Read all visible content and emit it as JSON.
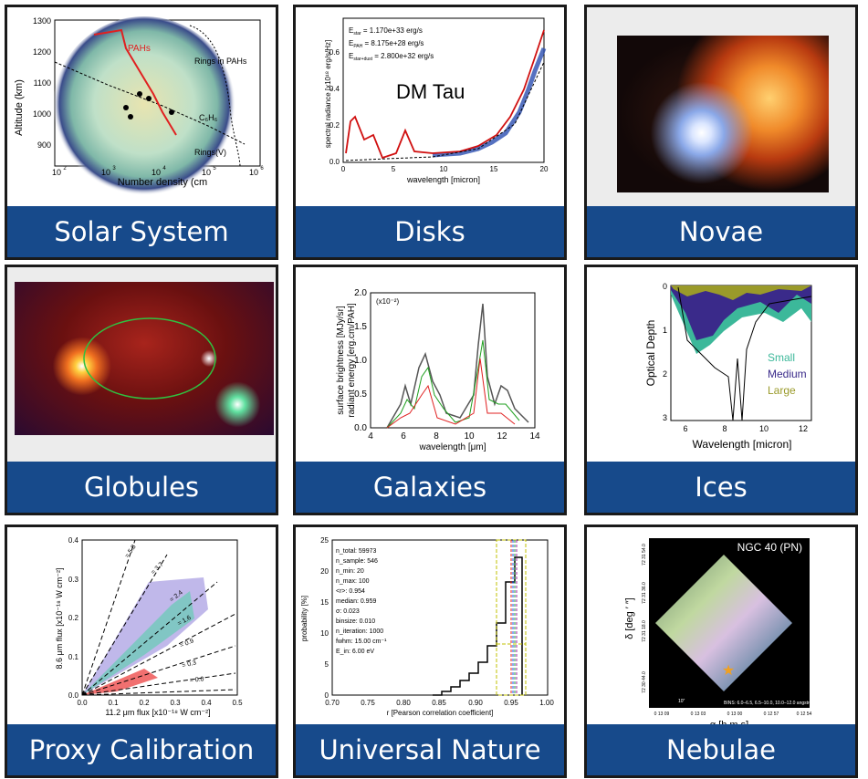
{
  "tiles": [
    {
      "id": "solar",
      "label": "Solar System"
    },
    {
      "id": "disks",
      "label": "Disks"
    },
    {
      "id": "novae",
      "label": "Novae"
    },
    {
      "id": "globules",
      "label": "Globules"
    },
    {
      "id": "galaxies",
      "label": "Galaxies"
    },
    {
      "id": "ices",
      "label": "Ices"
    },
    {
      "id": "proxy",
      "label": "Proxy Calibration"
    },
    {
      "id": "universal",
      "label": "Universal Nature"
    },
    {
      "id": "nebulae",
      "label": "Nebulae"
    }
  ],
  "solar": {
    "ylabel": "Altitude (km)",
    "xlabel": "Number density (cm",
    "yticks": [
      "1300",
      "1200",
      "1100",
      "1000",
      "900"
    ],
    "xticks": [
      "10",
      "10",
      "10",
      "10",
      "10"
    ],
    "xexp": [
      "2",
      "3",
      "4",
      "5",
      "6"
    ],
    "pahs": "PAHs",
    "rings_pahs": "Rings in PAHs",
    "c6h6": "C₆H₆",
    "rings_v": "Rings(V)"
  },
  "disks": {
    "title": "DM Tau",
    "ylabel": "spectral radiance [x10¹⁸ erg/s/Hz]",
    "xlabel": "wavelength [micron]",
    "e1": "E",
    "e1s": "star",
    "e1v": " = 1.170e+33 erg/s",
    "e2": "E",
    "e2s": "PAH",
    "e2v": " = 8.175e+28 erg/s",
    "e3": "E",
    "e3s": "star+dust",
    "e3v": " = 2.800e+32 erg/s",
    "xticks": [
      "0",
      "5",
      "10",
      "15",
      "20"
    ],
    "yticks": [
      "0.0",
      "0.2",
      "0.4",
      "0.6"
    ]
  },
  "galaxies": {
    "ylabel1": "surface brightness [MJy/sr]",
    "ylabel2": "radiant energy [erg.cm/PAH]",
    "xlabel": "wavelength [μm]",
    "scale": "(x10⁻²)",
    "xticks": [
      "4",
      "6",
      "8",
      "10",
      "12",
      "14"
    ],
    "yticks": [
      "0.0",
      "0.5",
      "1.0",
      "1.5",
      "2.0"
    ]
  },
  "ices": {
    "ylabel": "Optical Depth",
    "xlabel": "Wavelength [micron]",
    "xticks": [
      "6",
      "8",
      "10",
      "12"
    ],
    "yticks": [
      "0",
      "1",
      "2",
      "3"
    ],
    "legend": [
      "Small",
      "Medium",
      "Large"
    ],
    "colors": {
      "small": "#3cb89a",
      "medium": "#3a2a8a",
      "large": "#9a9a2a"
    }
  },
  "proxy": {
    "ylabel": "8.6 μm flux [x10⁻¹⁸ W cm⁻²]",
    "xlabel": "11.2 μm flux [x10⁻¹⁸ W cm⁻²]",
    "xticks": [
      "0.0",
      "0.1",
      "0.2",
      "0.3",
      "0.4",
      "0.5"
    ],
    "yticks": [
      "0.0",
      "0.1",
      "0.2",
      "0.3",
      "0.4"
    ],
    "lines": [
      "= 5.8",
      "= 3.7",
      "= 2.4",
      "= 1.6",
      "= 0.9",
      "= 0.3",
      "= 0.0"
    ]
  },
  "universal": {
    "ylabel": "probability [%]",
    "xlabel": "r [Pearson correlation coefficient]",
    "xticks": [
      "0.70",
      "0.75",
      "0.80",
      "0.85",
      "0.90",
      "0.95",
      "1.00"
    ],
    "yticks": [
      "0",
      "5",
      "10",
      "15",
      "20",
      "25"
    ],
    "stats": [
      "n_total: 59973",
      "n_sample: 546",
      "n_min: 20",
      "n_max: 100",
      "<r>: 0.954",
      "median: 0.959",
      "σ: 0.023",
      "binsize: 0.010",
      "n_iteration: 1000",
      "fwhm: 15.00 cm⁻¹",
      "E_in: 6.00 eV"
    ]
  },
  "nebulae": {
    "title": "NGC 40 (PN)",
    "ylabel": "δ [deg ′ ″]",
    "xlabel": "α [h m s]",
    "xticks": [
      "0 13 09",
      "0 13 03",
      "0 13 00",
      "0 12 57",
      "0 12 54"
    ],
    "yticks": [
      "72 31 54.0",
      "72 31 36.0",
      "72 31 18.0",
      "72 30 44.0"
    ],
    "bins": "BINS: 6.0–6.5, 6.5–10.0, 10.0–12.0 angstrom",
    "scale": "10″"
  }
}
